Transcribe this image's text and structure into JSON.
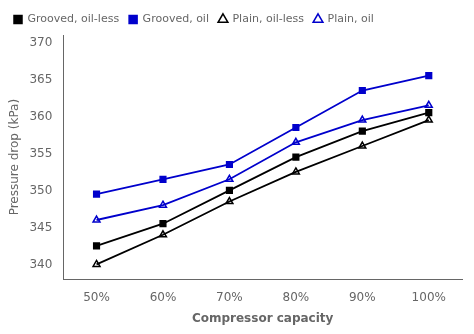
{
  "chart_data": {
    "type": "line",
    "xlabel": "Compressor capacity",
    "ylabel": "Pressure drop (kPa)",
    "x": [
      50,
      60,
      70,
      80,
      90,
      100
    ],
    "xlim": [
      45,
      105
    ],
    "xticks": [
      {
        "value": 50,
        "label": "50%"
      },
      {
        "value": 60,
        "label": "60%"
      },
      {
        "value": 70,
        "label": "70%"
      },
      {
        "value": 80,
        "label": "80%"
      },
      {
        "value": 90,
        "label": "90%"
      },
      {
        "value": 100,
        "label": "100%"
      }
    ],
    "ylim": [
      338,
      371
    ],
    "yticks": [
      340,
      345,
      350,
      355,
      360,
      365,
      370
    ],
    "grid": false,
    "legend": "upper left",
    "series": [
      {
        "name": "Grooved, oil-less",
        "color": "#000000",
        "marker": "square",
        "line_style": "solid",
        "values": [
          342.5,
          345.5,
          350.0,
          354.5,
          358.0,
          360.5
        ]
      },
      {
        "name": "Grooved, oil",
        "color": "#0000cc",
        "marker": "square",
        "line_style": "solid",
        "values": [
          349.5,
          351.5,
          353.5,
          358.5,
          363.5,
          365.5
        ]
      },
      {
        "name": "Plain, oil-less",
        "color": "#000000",
        "marker": "triangle-open",
        "line_style": "solid",
        "values": [
          340.0,
          344.0,
          348.5,
          352.5,
          356.0,
          359.5
        ]
      },
      {
        "name": "Plain, oil",
        "color": "#0000cc",
        "marker": "triangle-open",
        "line_style": "solid",
        "values": [
          346.0,
          348.0,
          351.5,
          356.5,
          359.5,
          361.5
        ]
      }
    ]
  }
}
